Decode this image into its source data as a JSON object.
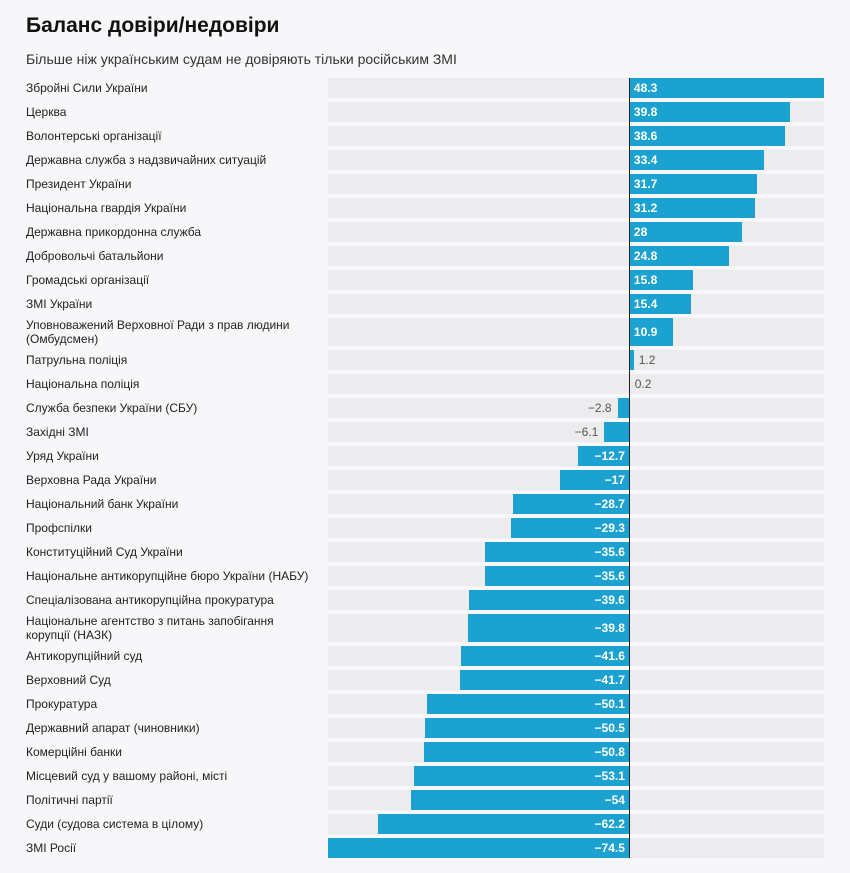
{
  "header": {
    "title": "Баланс довіри/недовіри",
    "subtitle": "Більше ніж українським судам не довіряють тільки російським ЗМІ"
  },
  "colors": {
    "bar": "#1ca2d0",
    "track": "#ececef",
    "background": "#f7f7f9"
  },
  "chart_data": {
    "type": "bar",
    "orientation": "horizontal",
    "xlim": [
      -74.5,
      48.3
    ],
    "categories": [
      "Збройні Сили України",
      "Церква",
      "Волонтерські організації",
      "Державна служба з надзвичайних ситуацій",
      "Президент України",
      "Національна гвардія України",
      "Державна прикордонна служба",
      "Добровольчі батальйони",
      "Громадські організації",
      "ЗМІ України",
      "Уповноважений Верховної Ради з прав людини (Омбудсмен)",
      "Патрульна поліція",
      "Національна поліція",
      "Служба безпеки України (СБУ)",
      "Західні ЗМІ",
      "Уряд України",
      "Верховна Рада України",
      "Національний банк України",
      "Профспілки",
      "Конституційний Суд України",
      "Національне антикорупційне бюро України (НАБУ)",
      "Спеціалізована антикорупційна прокуратура",
      "Національне агентство з питань запобігання корупції (НАЗК)",
      "Антикорупційний суд",
      "Верховний Суд",
      "Прокуратура",
      "Державний апарат (чиновники)",
      "Комерційні банки",
      "Місцевий суд у вашому районі, місті",
      "Політичні партії",
      "Суди (судова система в цілому)",
      "ЗМІ Росії"
    ],
    "values": [
      48.3,
      39.8,
      38.6,
      33.4,
      31.7,
      31.2,
      28,
      24.8,
      15.8,
      15.4,
      10.9,
      1.2,
      0.2,
      -2.8,
      -6.1,
      -12.7,
      -17,
      -28.7,
      -29.3,
      -35.6,
      -35.6,
      -39.6,
      -39.8,
      -41.6,
      -41.7,
      -50.1,
      -50.5,
      -50.8,
      -53.1,
      -54,
      -62.2,
      -74.5
    ],
    "value_labels": [
      "48.3",
      "39.8",
      "38.6",
      "33.4",
      "31.7",
      "31.2",
      "28",
      "24.8",
      "15.8",
      "15.4",
      "10.9",
      "1.2",
      "0.2",
      "−2.8",
      "−6.1",
      "−12.7",
      "−17",
      "−28.7",
      "−29.3",
      "−35.6",
      "−35.6",
      "−39.6",
      "−39.8",
      "−41.6",
      "−41.7",
      "−50.1",
      "−50.5",
      "−50.8",
      "−53.1",
      "−54",
      "−62.2",
      "−74.5"
    ]
  }
}
